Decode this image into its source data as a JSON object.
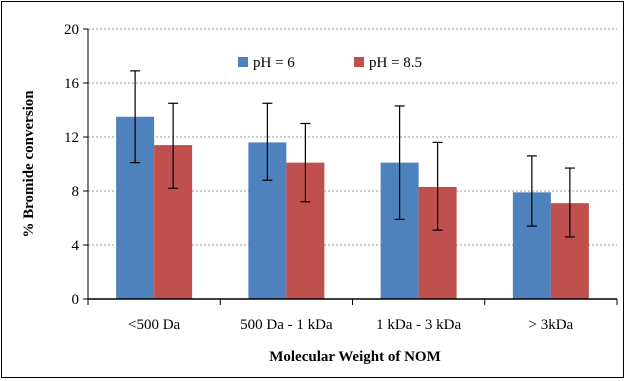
{
  "chart_data": {
    "type": "bar",
    "title": "",
    "xlabel": "Molecular Weight of NOM",
    "ylabel": "% Bromide conversion",
    "ylim": [
      0,
      20
    ],
    "yticks": [
      0,
      4,
      8,
      12,
      16,
      20
    ],
    "grid": true,
    "legend_position": "top-center",
    "categories": [
      "<500 Da",
      "500 Da - 1 kDa",
      "1 kDa - 3 kDa",
      "> 3kDa"
    ],
    "series": [
      {
        "name": "pH = 6",
        "color": "#4F81BD",
        "values": [
          13.5,
          11.6,
          10.1,
          7.9
        ],
        "error_upper": [
          16.9,
          14.5,
          14.3,
          10.6
        ],
        "error_lower": [
          10.1,
          8.8,
          5.9,
          5.4
        ]
      },
      {
        "name": "pH = 8.5",
        "color": "#C0504D",
        "values": [
          11.4,
          10.1,
          8.3,
          7.1
        ],
        "error_upper": [
          14.5,
          13.0,
          11.6,
          9.7
        ],
        "error_lower": [
          8.2,
          7.2,
          5.1,
          4.6
        ]
      }
    ]
  }
}
